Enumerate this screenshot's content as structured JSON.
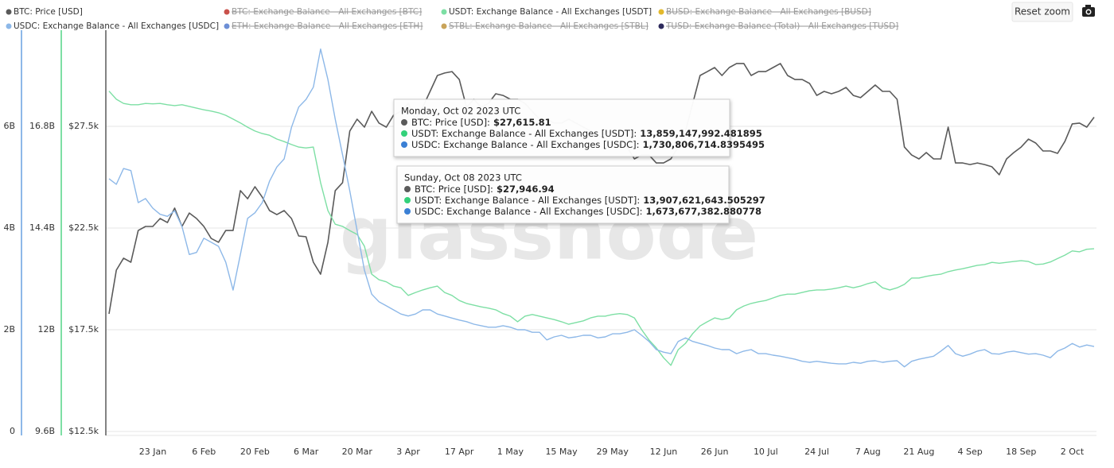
{
  "chart_data": {
    "type": "line",
    "watermark": "glassnode",
    "categories": [
      null,
      null,
      null,
      null,
      null,
      null,
      "23 Jan",
      null,
      null,
      null,
      null,
      null,
      null,
      "6 Feb",
      null,
      null,
      null,
      null,
      null,
      null,
      "20 Feb",
      null,
      null,
      null,
      null,
      null,
      null,
      "6 Mar",
      null,
      null,
      null,
      null,
      null,
      null,
      "20 Mar",
      null,
      null,
      null,
      null,
      null,
      null,
      "3 Apr",
      null,
      null,
      null,
      null,
      null,
      null,
      "17 Apr",
      null,
      null,
      null,
      null,
      null,
      null,
      "1 May",
      null,
      null,
      null,
      null,
      null,
      null,
      "15 May",
      null,
      null,
      null,
      null,
      null,
      null,
      "29 May",
      null,
      null,
      null,
      null,
      null,
      null,
      "12 Jun",
      null,
      null,
      null,
      null,
      null,
      null,
      "26 Jun",
      null,
      null,
      null,
      null,
      null,
      null,
      "10 Jul",
      null,
      null,
      null,
      null,
      null,
      null,
      "24 Jul",
      null,
      null,
      null,
      null,
      null,
      null,
      "7 Aug",
      null,
      null,
      null,
      null,
      null,
      null,
      "21 Aug",
      null,
      null,
      null,
      null,
      null,
      null,
      "4 Sep",
      null,
      null,
      null,
      null,
      null,
      null,
      "18 Sep",
      null,
      null,
      null,
      null,
      null,
      null,
      "2 Oct",
      null,
      null,
      null
    ],
    "series": [
      {
        "name": "BTC: Price [USD]",
        "color": "#5a5a5a",
        "axis": "y",
        "visible": true,
        "values": [
          18280,
          20430,
          21020,
          20820,
          22380,
          22580,
          22580,
          22970,
          22770,
          23480,
          22580,
          23240,
          22970,
          22580,
          21990,
          21800,
          22380,
          22380,
          24340,
          23940,
          24530,
          24020,
          23360,
          23160,
          23360,
          22970,
          22110,
          22070,
          20820,
          20230,
          21800,
          24340,
          24730,
          27270,
          27850,
          27460,
          28240,
          27660,
          27460,
          28050,
          28240,
          28630,
          27850,
          28440,
          29220,
          30000,
          30120,
          30190,
          29800,
          28440,
          28830,
          28440,
          28630,
          29100,
          29020,
          28830,
          28830,
          28630,
          28240,
          27850,
          27850,
          27660,
          27660,
          27850,
          27660,
          27460,
          27270,
          27070,
          26870,
          26680,
          26680,
          26480,
          25900,
          26090,
          26090,
          25700,
          25700,
          25900,
          26480,
          27270,
          28630,
          30000,
          30190,
          30390,
          30000,
          30390,
          30590,
          30590,
          30000,
          30190,
          30190,
          30390,
          30590,
          30000,
          29800,
          29800,
          29610,
          29020,
          29220,
          29100,
          29220,
          29410,
          29020,
          28910,
          29220,
          29530,
          29220,
          29220,
          28830,
          26480,
          26090,
          25900,
          26210,
          25900,
          25900,
          27460,
          25700,
          25700,
          25620,
          25700,
          25620,
          25510,
          25120,
          25900,
          26210,
          26480,
          26870,
          26680,
          26290,
          26290,
          26170,
          26760,
          27620,
          27660,
          27460,
          27950
        ]
      },
      {
        "name": "BTC: Exchange Balance - All Exchanges [BTC]",
        "color": "#c9514b",
        "visible": false
      },
      {
        "name": "USDT: Exchange Balance - All Exchanges [USDT]",
        "color": "#7ddfa4",
        "axis": "y2",
        "visible": true,
        "values": [
          17.63,
          17.44,
          17.34,
          17.31,
          17.31,
          17.34,
          17.33,
          17.34,
          17.31,
          17.29,
          17.31,
          17.27,
          17.23,
          17.19,
          17.16,
          17.12,
          17.06,
          16.97,
          16.88,
          16.78,
          16.69,
          16.63,
          16.59,
          16.5,
          16.44,
          16.37,
          16.31,
          16.29,
          16.31,
          15.47,
          14.81,
          14.49,
          14.44,
          14.34,
          14.25,
          13.97,
          13.31,
          13.18,
          13.13,
          13.03,
          12.99,
          12.81,
          12.88,
          12.94,
          12.99,
          13.03,
          12.88,
          12.81,
          12.69,
          12.62,
          12.58,
          12.54,
          12.51,
          12.47,
          12.38,
          12.32,
          12.19,
          12.32,
          12.36,
          12.32,
          12.28,
          12.24,
          12.19,
          12.13,
          12.17,
          12.21,
          12.28,
          12.32,
          12.32,
          12.36,
          12.38,
          12.36,
          12.28,
          12.0,
          11.76,
          11.57,
          11.34,
          11.16,
          11.53,
          11.68,
          11.91,
          12.09,
          12.19,
          12.28,
          12.24,
          12.28,
          12.47,
          12.56,
          12.62,
          12.66,
          12.69,
          12.75,
          12.81,
          12.84,
          12.84,
          12.88,
          12.92,
          12.94,
          12.94,
          12.96,
          12.99,
          13.03,
          12.99,
          13.03,
          13.09,
          13.13,
          12.99,
          12.94,
          12.99,
          13.07,
          13.22,
          13.22,
          13.26,
          13.29,
          13.31,
          13.37,
          13.41,
          13.44,
          13.48,
          13.52,
          13.54,
          13.59,
          13.57,
          13.59,
          13.61,
          13.63,
          13.61,
          13.54,
          13.55,
          13.6,
          13.68,
          13.76,
          13.86,
          13.84,
          13.9,
          13.91
        ]
      },
      {
        "name": "BUSD: Exchange Balance - All Exchanges [BUSD]",
        "color": "#e3b92c",
        "visible": false
      },
      {
        "name": "USDC: Exchange Balance - All Exchanges [USDC]",
        "color": "#8db8e8",
        "axis": "y3",
        "visible": true,
        "values": [
          4.97,
          4.86,
          5.17,
          5.13,
          4.5,
          4.58,
          4.39,
          4.27,
          4.23,
          4.34,
          4.03,
          3.48,
          3.52,
          3.8,
          3.72,
          3.64,
          3.33,
          2.78,
          3.48,
          4.19,
          4.3,
          4.5,
          4.92,
          5.2,
          5.36,
          5.98,
          6.38,
          6.53,
          6.77,
          7.52,
          6.92,
          6.14,
          5.44,
          4.73,
          3.95,
          3.17,
          2.7,
          2.55,
          2.47,
          2.39,
          2.31,
          2.27,
          2.31,
          2.39,
          2.39,
          2.31,
          2.27,
          2.23,
          2.19,
          2.16,
          2.11,
          2.08,
          2.05,
          2.05,
          2.08,
          2.05,
          2.0,
          2.0,
          1.95,
          1.95,
          1.8,
          1.86,
          1.89,
          1.84,
          1.86,
          1.89,
          1.89,
          1.84,
          1.86,
          1.92,
          1.92,
          1.95,
          2.0,
          1.89,
          1.77,
          1.61,
          1.56,
          1.53,
          1.77,
          1.84,
          1.77,
          1.73,
          1.69,
          1.64,
          1.61,
          1.61,
          1.53,
          1.58,
          1.61,
          1.53,
          1.53,
          1.5,
          1.48,
          1.45,
          1.42,
          1.38,
          1.36,
          1.38,
          1.36,
          1.34,
          1.33,
          1.33,
          1.36,
          1.34,
          1.38,
          1.39,
          1.36,
          1.38,
          1.39,
          1.27,
          1.38,
          1.42,
          1.45,
          1.48,
          1.58,
          1.69,
          1.53,
          1.48,
          1.52,
          1.58,
          1.61,
          1.53,
          1.52,
          1.56,
          1.58,
          1.55,
          1.52,
          1.53,
          1.5,
          1.45,
          1.58,
          1.64,
          1.73,
          1.66,
          1.7,
          1.67
        ]
      },
      {
        "name": "ETH: Exchange Balance - All Exchanges [ETH]",
        "color": "#6d8fd6",
        "visible": false
      },
      {
        "name": "STBL: Exchange Balance - All Exchanges [STBL]",
        "color": "#c9a45a",
        "visible": false
      },
      {
        "name": "TUSD: Exchange Balance (Total) - All Exchanges [TUSD]",
        "color": "#2d2a5c",
        "visible": false
      }
    ],
    "ylim": [
      12500,
      32500
    ],
    "yticks": [
      {
        "value": 12500,
        "label": "$12.5k"
      },
      {
        "value": 17500,
        "label": "$17.5k"
      },
      {
        "value": 22500,
        "label": "$22.5k"
      },
      {
        "value": 27500,
        "label": "$27.5k"
      }
    ],
    "y2lim": [
      9.6,
      19.2
    ],
    "y2ticks": [
      {
        "value": 9.6,
        "label": "9.6B"
      },
      {
        "value": 12,
        "label": "12B"
      },
      {
        "value": 14.4,
        "label": "14.4B"
      },
      {
        "value": 16.8,
        "label": "16.8B"
      }
    ],
    "y3lim": [
      0,
      8
    ],
    "y3ticks": [
      0,
      {
        "value": 2,
        "label": "2B"
      },
      {
        "value": 4,
        "label": "4B"
      },
      {
        "value": 6,
        "label": "6B"
      }
    ],
    "grid": true,
    "tooltips": [
      {
        "title": "Monday, Oct 02 2023 UTC",
        "rows": [
          {
            "label": "BTC: Price [USD]:",
            "value": "$27,615.81",
            "color": "#5a5a5a"
          },
          {
            "label": "USDT: Exchange Balance - All Exchanges [USDT]:",
            "value": "13,859,147,992.481895",
            "color": "#33d17a"
          },
          {
            "label": "USDC: Exchange Balance - All Exchanges [USDC]:",
            "value": "1,730,806,714.8395495",
            "color": "#3a7fd4"
          }
        ]
      },
      {
        "title": "Sunday, Oct 08 2023 UTC",
        "rows": [
          {
            "label": "BTC: Price [USD]:",
            "value": "$27,946.94",
            "color": "#5a5a5a"
          },
          {
            "label": "USDT: Exchange Balance - All Exchanges [USDT]:",
            "value": "13,907,621,643.505297",
            "color": "#33d17a"
          },
          {
            "label": "USDC: Exchange Balance - All Exchanges [USDC]:",
            "value": "1,673,677,382.880778",
            "color": "#3a7fd4"
          }
        ]
      }
    ]
  },
  "toolbar": {
    "reset_zoom": "Reset zoom"
  }
}
